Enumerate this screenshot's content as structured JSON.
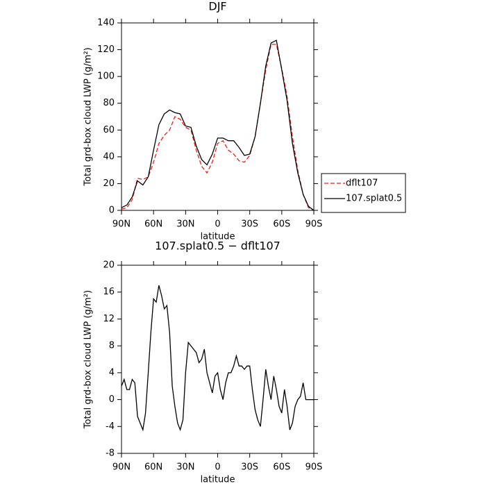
{
  "chart_data": [
    {
      "type": "line",
      "title": "DJF",
      "x_label": "latitude",
      "y_label": "Total grd-box cloud LWP (g/m²)",
      "x": [
        90,
        85,
        80,
        75,
        70,
        65,
        60,
        55,
        50,
        45,
        40,
        35,
        30,
        25,
        20,
        15,
        10,
        5,
        0,
        -5,
        -10,
        -15,
        -20,
        -25,
        -30,
        -35,
        -40,
        -45,
        -50,
        -55,
        -60,
        -65,
        -70,
        -75,
        -80,
        -85,
        -90
      ],
      "xlim": [
        90,
        -90
      ],
      "xticks": [
        {
          "value": 90,
          "label": "90N"
        },
        {
          "value": 60,
          "label": "60N"
        },
        {
          "value": 30,
          "label": "30N"
        },
        0,
        {
          "value": -30,
          "label": "30S"
        },
        {
          "value": -60,
          "label": "60S"
        },
        {
          "value": -90,
          "label": "90S"
        }
      ],
      "ylim": [
        0,
        140
      ],
      "yticks": [
        0,
        20,
        40,
        60,
        80,
        100,
        120,
        140
      ],
      "legend": "right",
      "series": [
        {
          "name": "dflt107",
          "color": "#e8201c",
          "dash": "dashed",
          "values": [
            1,
            2,
            8,
            24,
            23,
            25,
            36,
            50,
            56,
            60,
            70,
            68,
            62,
            60,
            45,
            33,
            28,
            36,
            50,
            52,
            45,
            42,
            37,
            36,
            41,
            55,
            80,
            105,
            124,
            124,
            106,
            85,
            55,
            30,
            12,
            2,
            0
          ]
        },
        {
          "name": "107.splat0.5",
          "color": "#000000",
          "dash": "solid",
          "values": [
            2,
            4,
            10,
            22,
            19,
            25,
            45,
            64,
            72,
            75,
            73,
            72,
            63,
            62,
            48,
            38,
            34,
            42,
            54,
            54,
            52,
            52,
            47,
            41,
            42,
            55,
            80,
            108,
            125,
            127,
            105,
            82,
            50,
            28,
            12,
            3,
            0
          ]
        }
      ]
    },
    {
      "type": "line",
      "title": "107.splat0.5 − dflt107",
      "x_label": "latitude",
      "y_label": "Total grd-box cloud LWP (g/m²)",
      "x": [
        90,
        87.5,
        85,
        82.5,
        80,
        77.5,
        75,
        72.5,
        70,
        67.5,
        65,
        62.5,
        60,
        57.5,
        55,
        52.5,
        50,
        47.5,
        45,
        42.5,
        40,
        37.5,
        35,
        32.5,
        30,
        27.5,
        25,
        22.5,
        20,
        17.5,
        15,
        12.5,
        10,
        7.5,
        5,
        2.5,
        0,
        -2.5,
        -5,
        -7.5,
        -10,
        -12.5,
        -15,
        -17.5,
        -20,
        -22.5,
        -25,
        -27.5,
        -30,
        -32.5,
        -35,
        -37.5,
        -40,
        -42.5,
        -45,
        -47.5,
        -50,
        -52.5,
        -55,
        -57.5,
        -60,
        -62.5,
        -65,
        -67.5,
        -70,
        -72.5,
        -75,
        -77.5,
        -80,
        -82.5,
        -85,
        -87.5,
        -90
      ],
      "xlim": [
        90,
        -90
      ],
      "xticks": [
        {
          "value": 90,
          "label": "90N"
        },
        {
          "value": 60,
          "label": "60N"
        },
        {
          "value": 30,
          "label": "30N"
        },
        0,
        {
          "value": -30,
          "label": "30S"
        },
        {
          "value": -60,
          "label": "60S"
        },
        {
          "value": -90,
          "label": "90S"
        }
      ],
      "ylim": [
        -8,
        20
      ],
      "yticks": [
        -8,
        -4,
        0,
        4,
        8,
        12,
        16,
        20
      ],
      "color": "#000000",
      "values": [
        2,
        3,
        1.5,
        1.5,
        3,
        2.5,
        -2.5,
        -3.5,
        -4.5,
        -2,
        4,
        10,
        15,
        14.5,
        17,
        15.5,
        13.5,
        14,
        10,
        2,
        -1,
        -3.5,
        -4.5,
        -3,
        4,
        8.5,
        8,
        7.5,
        7,
        5.5,
        6,
        7.5,
        4,
        2.5,
        1,
        3.5,
        4,
        1.5,
        0,
        2.5,
        4,
        4,
        5,
        6.5,
        5,
        5,
        4.5,
        5,
        5,
        1.5,
        -1.5,
        -3,
        -4,
        0,
        4.5,
        2,
        0,
        3.5,
        1.5,
        -1,
        -2,
        1.5,
        -1,
        -4.5,
        -3.5,
        -1,
        0,
        0.5,
        2.5,
        0,
        0,
        0,
        0
      ]
    }
  ]
}
